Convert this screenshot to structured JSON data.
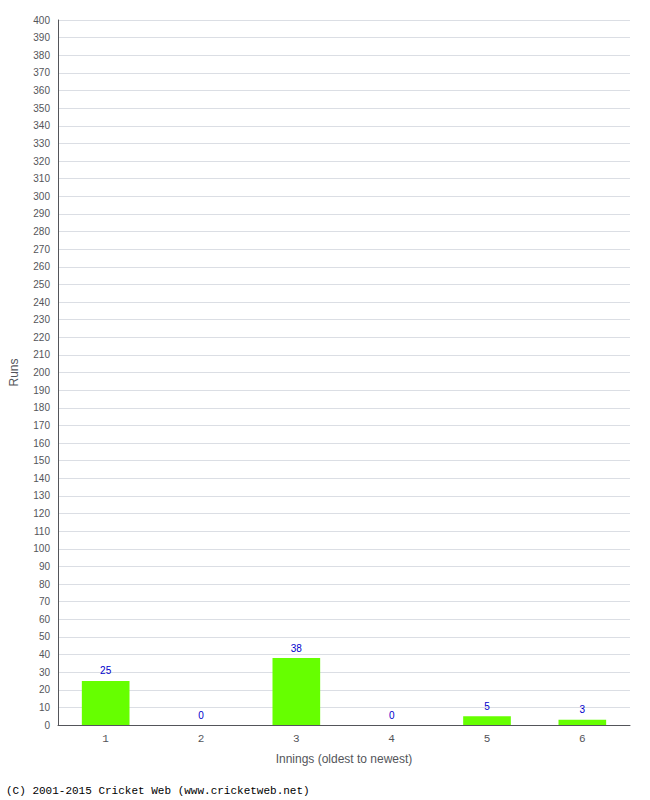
{
  "chart_data": {
    "type": "bar",
    "categories": [
      "1",
      "2",
      "3",
      "4",
      "5",
      "6"
    ],
    "values": [
      25,
      0,
      38,
      0,
      5,
      3
    ],
    "color": "#66ff00",
    "xlabel": "Innings (oldest to newest)",
    "ylabel": "Runs",
    "ylim": [
      0,
      400
    ],
    "yticks": [
      0,
      10,
      20,
      30,
      40,
      50,
      60,
      70,
      80,
      90,
      100,
      110,
      120,
      130,
      140,
      150,
      160,
      170,
      180,
      190,
      200,
      210,
      220,
      230,
      240,
      250,
      260,
      270,
      280,
      290,
      300,
      310,
      320,
      330,
      340,
      350,
      360,
      370,
      380,
      390,
      400
    ],
    "grid": true,
    "data_labels": true,
    "annotations": [
      "(C) 2001-2015 Cricket Web (www.cricketweb.net)"
    ]
  }
}
